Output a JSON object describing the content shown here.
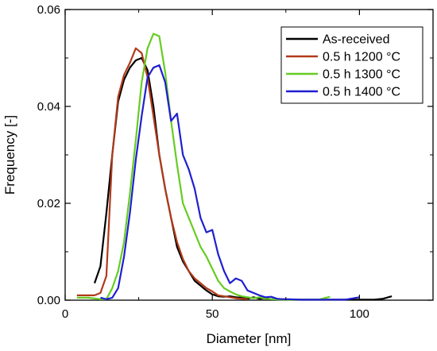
{
  "chart_data": {
    "type": "line",
    "title": "",
    "xlabel": "Diameter [nm]",
    "ylabel": "Frequency [-]",
    "xlim": [
      0,
      125
    ],
    "ylim": [
      0,
      0.06
    ],
    "x_ticks": [
      0,
      50,
      100
    ],
    "x_tick_labels": [
      "0",
      "50",
      "100"
    ],
    "y_ticks": [
      0,
      0.02,
      0.04,
      0.06
    ],
    "y_tick_labels": [
      "0.00",
      "0.02",
      "0.04",
      "0.06"
    ],
    "grid": false,
    "legend_position": "top-right",
    "series": [
      {
        "name": "As-received",
        "color": "#000000",
        "x": [
          10,
          12,
          14,
          16,
          18,
          20,
          22,
          24,
          26,
          28,
          30,
          32,
          34,
          36,
          38,
          40,
          42,
          44,
          46,
          48,
          50,
          52,
          54,
          56,
          58,
          60,
          62,
          64,
          66,
          68,
          70,
          74,
          80,
          90,
          100,
          105,
          108,
          111
        ],
        "y": [
          0.0035,
          0.007,
          0.018,
          0.03,
          0.041,
          0.0455,
          0.048,
          0.0495,
          0.05,
          0.0475,
          0.04,
          0.03,
          0.023,
          0.017,
          0.011,
          0.008,
          0.006,
          0.004,
          0.003,
          0.002,
          0.0012,
          0.0008,
          0.0007,
          0.0008,
          0.0006,
          0.0005,
          0.0003,
          0.0006,
          0.0003,
          0.0004,
          0.0002,
          0.0002,
          0.0001,
          0.0001,
          0.0001,
          0.0001,
          0.0003,
          0.0008
        ]
      },
      {
        "name": "0.5 h 1200 °C",
        "color": "#b23a1a",
        "x": [
          4,
          6,
          8,
          10,
          12,
          14,
          16,
          18,
          20,
          22,
          24,
          26,
          28,
          30,
          32,
          34,
          36,
          38,
          40,
          42,
          44,
          46,
          48,
          50,
          52,
          54,
          56,
          58,
          60,
          62
        ],
        "y": [
          0.001,
          0.001,
          0.001,
          0.001,
          0.0015,
          0.005,
          0.03,
          0.042,
          0.0465,
          0.049,
          0.052,
          0.051,
          0.046,
          0.038,
          0.03,
          0.023,
          0.017,
          0.012,
          0.0085,
          0.006,
          0.0045,
          0.0035,
          0.0025,
          0.0018,
          0.001,
          0.0008,
          0.0006,
          0.0004,
          0.0003,
          0.0002
        ]
      },
      {
        "name": "0.5 h 1300 °C",
        "color": "#66cc22",
        "x": [
          4,
          8,
          12,
          14,
          16,
          18,
          20,
          22,
          24,
          26,
          28,
          30,
          32,
          34,
          36,
          38,
          40,
          42,
          44,
          46,
          48,
          50,
          52,
          54,
          56,
          58,
          60,
          62,
          64,
          66,
          68,
          70,
          74,
          80,
          86,
          90
        ],
        "y": [
          0.0005,
          0.0005,
          0.0002,
          0.0002,
          0.0025,
          0.006,
          0.012,
          0.022,
          0.033,
          0.045,
          0.052,
          0.055,
          0.0545,
          0.047,
          0.037,
          0.028,
          0.02,
          0.017,
          0.014,
          0.011,
          0.009,
          0.0065,
          0.004,
          0.0025,
          0.0018,
          0.0012,
          0.0008,
          0.0006,
          0.0004,
          0.0006,
          0.0003,
          0.0002,
          0.0001,
          0.0001,
          0.0001,
          0.0007
        ]
      },
      {
        "name": "0.5 h 1400 °C",
        "color": "#1f1fd0",
        "x": [
          12,
          14,
          16,
          18,
          20,
          22,
          24,
          26,
          28,
          30,
          32,
          34,
          36,
          38,
          40,
          42,
          44,
          46,
          48,
          50,
          52,
          54,
          56,
          58,
          60,
          62,
          64,
          66,
          68,
          70,
          72,
          74,
          76,
          80,
          85,
          90,
          95,
          100
        ],
        "y": [
          0.0005,
          0.0002,
          0.0005,
          0.0025,
          0.009,
          0.018,
          0.029,
          0.038,
          0.046,
          0.048,
          0.0485,
          0.045,
          0.037,
          0.0385,
          0.03,
          0.027,
          0.023,
          0.017,
          0.014,
          0.0145,
          0.0095,
          0.006,
          0.0035,
          0.0045,
          0.004,
          0.002,
          0.0015,
          0.001,
          0.0006,
          0.0007,
          0.0003,
          0.0002,
          0.0002,
          0.0001,
          0.0001,
          0.0001,
          0.0001,
          0.0006
        ]
      }
    ]
  }
}
